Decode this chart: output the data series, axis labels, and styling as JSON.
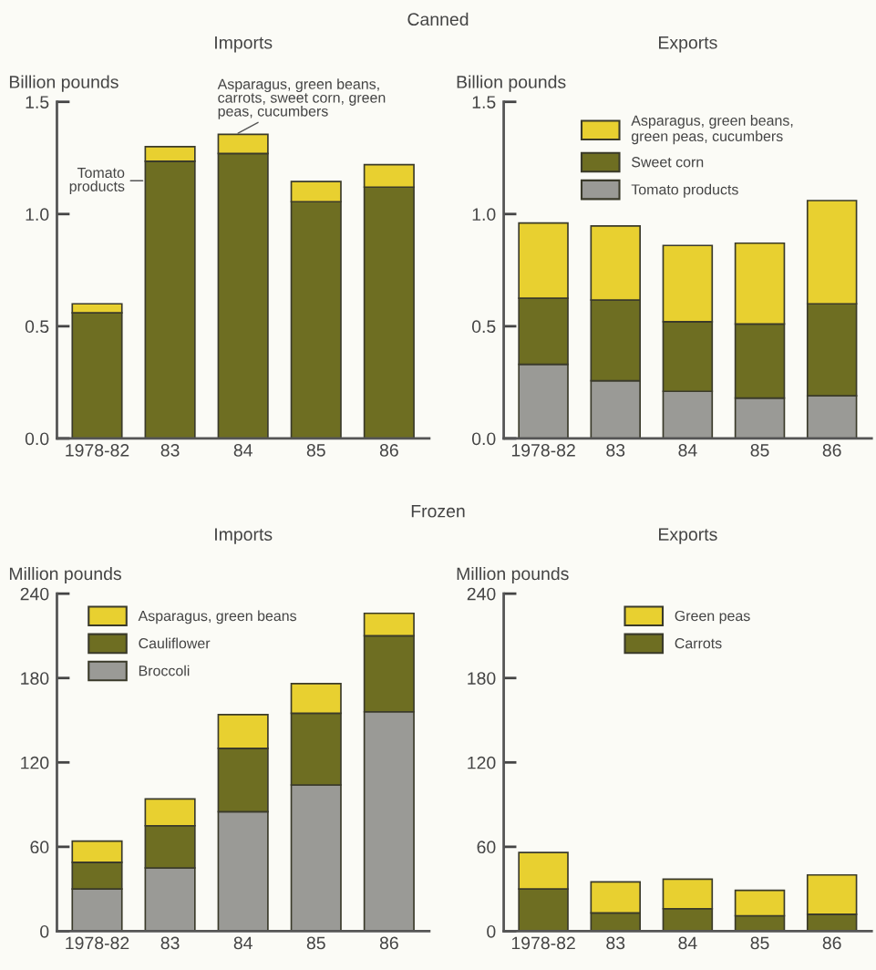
{
  "chart_data": [
    {
      "type": "bar",
      "title": "Imports",
      "ylabel": "Billion pounds",
      "categories": [
        "1978-82",
        "83",
        "84",
        "85",
        "86"
      ],
      "stacked": true,
      "legend": false,
      "series": [
        {
          "name": "Tomato\nproducts",
          "color": "#6e6e22",
          "values": [
            0.56,
            1.235,
            1.27,
            1.055,
            1.12
          ]
        },
        {
          "name": "Asparagus, green beans,\ncarrots, sweet corn, green\npeas, cucumbers",
          "color": "#e8d030",
          "values": [
            0.04,
            0.065,
            0.085,
            0.09,
            0.1
          ]
        }
      ],
      "ylim": [
        0,
        1.5
      ],
      "yticks": [
        {
          "value": 0,
          "label": "0.0"
        },
        {
          "value": 0.5,
          "label": "0.5"
        },
        {
          "value": 1.0,
          "label": "1.0"
        },
        {
          "value": 1.5,
          "label": "1.5"
        }
      ],
      "annotations": [
        "Canned"
      ]
    },
    {
      "type": "bar",
      "title": "Exports",
      "ylabel": "Billion pounds",
      "categories": [
        "1978-82",
        "83",
        "84",
        "85",
        "86"
      ],
      "stacked": true,
      "legend": "top",
      "series": [
        {
          "name": "Tomato products",
          "color": "#9a9a96",
          "values": [
            0.33,
            0.257,
            0.21,
            0.18,
            0.19
          ]
        },
        {
          "name": "Sweet corn",
          "color": "#6e6e22",
          "values": [
            0.295,
            0.36,
            0.31,
            0.33,
            0.41
          ]
        },
        {
          "name": "Asparagus, green beans,\ngreen peas, cucumbers",
          "color": "#e8d030",
          "values": [
            0.335,
            0.33,
            0.34,
            0.36,
            0.46
          ]
        }
      ],
      "ylim": [
        0,
        1.5
      ],
      "yticks": [
        {
          "value": 0,
          "label": "0.0"
        },
        {
          "value": 0.5,
          "label": "0.5"
        },
        {
          "value": 1.0,
          "label": "1.0"
        },
        {
          "value": 1.5,
          "label": "1.5"
        }
      ]
    },
    {
      "type": "bar",
      "title": "Imports",
      "ylabel": "Million pounds",
      "categories": [
        "1978-82",
        "83",
        "84",
        "85",
        "86"
      ],
      "stacked": true,
      "legend": "top left",
      "series": [
        {
          "name": "Broccoli",
          "color": "#9a9a96",
          "values": [
            30,
            45,
            85,
            104,
            156
          ]
        },
        {
          "name": "Cauliflower",
          "color": "#6e6e22",
          "values": [
            19,
            30,
            45,
            51,
            54
          ]
        },
        {
          "name": "Asparagus, green beans",
          "color": "#e8d030",
          "values": [
            15,
            19,
            24,
            21,
            16
          ]
        }
      ],
      "ylim": [
        0,
        240
      ],
      "yticks": [
        0,
        60,
        120,
        180,
        240
      ],
      "annotations": [
        "Frozen"
      ]
    },
    {
      "type": "bar",
      "title": "Exports",
      "ylabel": "Million pounds",
      "categories": [
        "1978-82",
        "83",
        "84",
        "85",
        "86"
      ],
      "stacked": true,
      "legend": "top",
      "series": [
        {
          "name": "Carrots",
          "color": "#6e6e22",
          "values": [
            30,
            13,
            16,
            11,
            12
          ]
        },
        {
          "name": "Green peas",
          "color": "#e8d030",
          "values": [
            26,
            22,
            21,
            18,
            28
          ]
        }
      ],
      "ylim": [
        0,
        240
      ],
      "yticks": [
        0,
        60,
        120,
        180,
        240
      ]
    }
  ]
}
